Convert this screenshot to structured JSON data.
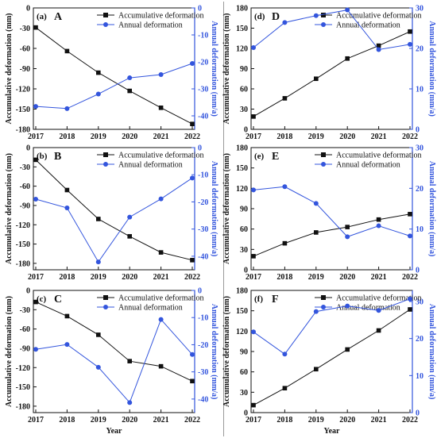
{
  "legend": {
    "cum_label": "Accumulative deformation",
    "ann_label": "Annual deformation"
  },
  "colors": {
    "cumulative": "#111111",
    "annual": "#3355dd",
    "axis": "#111111"
  },
  "chart_data": [
    {
      "type": "line",
      "panel_label": "(a)",
      "region_label": "A",
      "x": [
        "2017",
        "2018",
        "2019",
        "2020",
        "2021",
        "2022"
      ],
      "xlabel": "",
      "ylabel_left": "Accumulative deformation (mm)",
      "ylabel_right": "Annual deformation (mm/a)",
      "ylim_left": [
        -180,
        0
      ],
      "yticks_left": [
        -180,
        -150,
        -120,
        -90,
        -60,
        -30,
        0
      ],
      "ylim_right": [
        -45,
        0
      ],
      "yticks_right": [
        -40,
        -30,
        -20,
        -10,
        0
      ],
      "legend_position": "top-right",
      "series": [
        {
          "name": "Accumulative deformation",
          "axis": "left",
          "marker": "square",
          "values": [
            -29,
            -64,
            -96,
            -123,
            -148,
            -172
          ]
        },
        {
          "name": "Annual deformation",
          "axis": "right",
          "marker": "circle",
          "values": [
            -36.5,
            -37.3,
            -31.9,
            -25.9,
            -24.7,
            -20.6
          ]
        }
      ]
    },
    {
      "type": "line",
      "panel_label": "(b)",
      "region_label": "B",
      "x": [
        "2017",
        "2018",
        "2019",
        "2020",
        "2021",
        "2022"
      ],
      "xlabel": "",
      "ylabel_left": "Accumulative deformation (mm)",
      "ylabel_right": "Annual deformation (mm/a)",
      "ylim_left": [
        -190,
        0
      ],
      "yticks_left": [
        -180,
        -150,
        -120,
        -90,
        -60,
        -30,
        0
      ],
      "ylim_right": [
        -45,
        0
      ],
      "yticks_right": [
        -40,
        -30,
        -20,
        -10,
        0
      ],
      "legend_position": "top-right",
      "series": [
        {
          "name": "Accumulative deformation",
          "axis": "left",
          "marker": "square",
          "values": [
            -19,
            -66,
            -111,
            -138,
            -163,
            -175
          ]
        },
        {
          "name": "Annual deformation",
          "axis": "right",
          "marker": "circle",
          "values": [
            -19.0,
            -22.2,
            -42.1,
            -25.6,
            -18.9,
            -11.2
          ]
        }
      ]
    },
    {
      "type": "line",
      "panel_label": "(c)",
      "region_label": "C",
      "x": [
        "2017",
        "2018",
        "2019",
        "2020",
        "2021",
        "2022"
      ],
      "xlabel": "Year",
      "ylabel_left": "Accumulative deformation (mm)",
      "ylabel_right": "Annual deformation (mm/a)",
      "ylim_left": [
        -190,
        0
      ],
      "yticks_left": [
        -180,
        -150,
        -120,
        -90,
        -60,
        -30,
        0
      ],
      "ylim_right": [
        -45,
        0
      ],
      "yticks_right": [
        -40,
        -30,
        -20,
        -10,
        0
      ],
      "legend_position": "top-right",
      "series": [
        {
          "name": "Accumulative deformation",
          "axis": "left",
          "marker": "square",
          "values": [
            -18,
            -40,
            -69,
            -110,
            -118,
            -141
          ]
        },
        {
          "name": "Annual deformation",
          "axis": "right",
          "marker": "circle",
          "values": [
            -21.7,
            -19.9,
            -28.3,
            -41.3,
            -10.7,
            -23.6
          ]
        }
      ]
    },
    {
      "type": "line",
      "panel_label": "(d)",
      "region_label": "D",
      "x": [
        "2017",
        "2018",
        "2019",
        "2020",
        "2021",
        "2022"
      ],
      "xlabel": "",
      "ylabel_left": "Accumulative deformation (mm)",
      "ylabel_right": "Annual deformation (mm/a)",
      "ylim_left": [
        0,
        180
      ],
      "yticks_left": [
        0,
        30,
        60,
        90,
        120,
        150,
        180
      ],
      "ylim_right": [
        0,
        30
      ],
      "yticks_right": [
        0,
        10,
        20,
        30
      ],
      "legend_position": "top-right",
      "series": [
        {
          "name": "Accumulative deformation",
          "axis": "left",
          "marker": "square",
          "values": [
            19,
            46,
            75,
            105,
            124,
            145
          ]
        },
        {
          "name": "Annual deformation",
          "axis": "right",
          "marker": "circle",
          "values": [
            20.2,
            26.4,
            28.1,
            29.5,
            19.7,
            21.0
          ]
        }
      ]
    },
    {
      "type": "line",
      "panel_label": "(e)",
      "region_label": "E",
      "x": [
        "2017",
        "2018",
        "2019",
        "2020",
        "2021",
        "2022"
      ],
      "xlabel": "",
      "ylabel_left": "Accumulative deformation (mm)",
      "ylabel_right": "Annual deformation (mm/a)",
      "ylim_left": [
        0,
        180
      ],
      "yticks_left": [
        0,
        30,
        60,
        90,
        120,
        150,
        180
      ],
      "ylim_right": [
        0,
        30
      ],
      "yticks_right": [
        0,
        10,
        20,
        30
      ],
      "legend_position": "top-right",
      "series": [
        {
          "name": "Accumulative deformation",
          "axis": "left",
          "marker": "square",
          "values": [
            20,
            39,
            55,
            63,
            74,
            82
          ]
        },
        {
          "name": "Annual deformation",
          "axis": "right",
          "marker": "circle",
          "values": [
            19.6,
            20.4,
            16.3,
            8.1,
            10.8,
            8.3
          ]
        }
      ]
    },
    {
      "type": "line",
      "panel_label": "(f)",
      "region_label": "F",
      "x": [
        "2017",
        "2018",
        "2019",
        "2020",
        "2021",
        "2022"
      ],
      "xlabel": "Year",
      "ylabel_left": "Accumulative deformation (mm)",
      "ylabel_right": "Annual deformation (mm/a)",
      "ylim_left": [
        0,
        180
      ],
      "yticks_left": [
        0,
        30,
        60,
        90,
        120,
        150,
        180
      ],
      "ylim_right": [
        0,
        33
      ],
      "yticks_right": [
        0,
        10,
        20,
        30
      ],
      "legend_position": "top-right",
      "series": [
        {
          "name": "Accumulative deformation",
          "axis": "left",
          "marker": "square",
          "values": [
            11,
            36,
            64,
            93,
            121,
            152
          ]
        },
        {
          "name": "Annual deformation",
          "axis": "right",
          "marker": "circle",
          "values": [
            21.8,
            15.8,
            27.3,
            28.8,
            27.6,
            30.7
          ]
        }
      ]
    }
  ]
}
